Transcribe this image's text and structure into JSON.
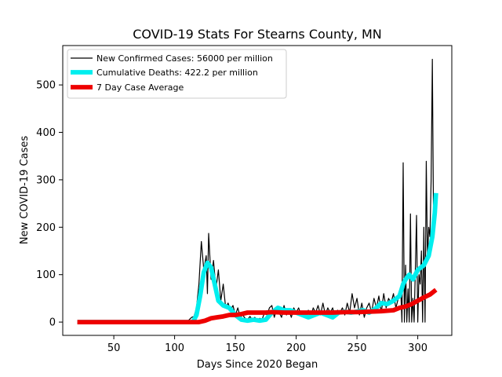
{
  "chart_data": {
    "type": "line",
    "title": "COVID-19 Stats For Stearns County, MN",
    "xlabel": "Days Since 2020 Began",
    "ylabel": "New COVID-19 Cases",
    "xlim": [
      8.0,
      328.0
    ],
    "ylim": [
      -28.0,
      583.0
    ],
    "xticks": [
      50,
      100,
      150,
      200,
      250,
      300
    ],
    "yticks": [
      0,
      100,
      200,
      300,
      400,
      500
    ],
    "grid": false,
    "legend_position": "top-left",
    "series": [
      {
        "name": "New Confirmed Cases: 56000 per million",
        "color": "#000000",
        "x": [
          20,
          40,
          60,
          80,
          100,
          110,
          112,
          114,
          116,
          118,
          120,
          122,
          124,
          126,
          127,
          128,
          130,
          132,
          134,
          136,
          138,
          140,
          142,
          144,
          146,
          148,
          150,
          152,
          154,
          156,
          158,
          160,
          162,
          164,
          166,
          168,
          170,
          172,
          174,
          176,
          178,
          180,
          182,
          184,
          186,
          188,
          190,
          192,
          194,
          196,
          198,
          200,
          202,
          204,
          206,
          208,
          210,
          212,
          214,
          216,
          218,
          220,
          222,
          224,
          226,
          228,
          230,
          232,
          234,
          236,
          238,
          240,
          242,
          244,
          246,
          248,
          250,
          252,
          254,
          256,
          258,
          260,
          262,
          264,
          266,
          268,
          270,
          272,
          274,
          276,
          278,
          280,
          282,
          284,
          286,
          287,
          288,
          289,
          290,
          291,
          292,
          293,
          294,
          295,
          296,
          297,
          298,
          299,
          300,
          301,
          302,
          303,
          304,
          305,
          306,
          307,
          308,
          309,
          310,
          311,
          312,
          313,
          314,
          315
        ],
        "values": [
          0,
          0,
          0,
          0,
          0,
          0,
          5,
          10,
          12,
          30,
          80,
          170,
          110,
          140,
          60,
          187,
          90,
          130,
          70,
          110,
          45,
          80,
          30,
          40,
          25,
          35,
          15,
          30,
          10,
          15,
          8,
          5,
          12,
          4,
          10,
          3,
          8,
          6,
          20,
          15,
          30,
          35,
          10,
          30,
          20,
          10,
          35,
          15,
          25,
          10,
          30,
          20,
          30,
          15,
          20,
          10,
          25,
          10,
          30,
          20,
          35,
          15,
          40,
          15,
          30,
          20,
          30,
          10,
          25,
          20,
          30,
          15,
          40,
          20,
          60,
          30,
          50,
          15,
          40,
          10,
          30,
          40,
          20,
          50,
          30,
          55,
          20,
          60,
          30,
          50,
          40,
          60,
          30,
          50,
          70,
          0,
          336,
          0,
          120,
          0,
          70,
          0,
          228,
          0,
          50,
          0,
          110,
          225,
          0,
          100,
          80,
          150,
          0,
          200,
          0,
          339,
          130,
          200,
          180,
          300,
          554,
          200,
          250,
          270
        ]
      },
      {
        "name": "Cumulative Deaths: 422.2 per million",
        "color": "#00eeee",
        "x": [
          20,
          60,
          100,
          115,
          118,
          121,
          124,
          127,
          130,
          133,
          136,
          140,
          145,
          150,
          155,
          160,
          165,
          170,
          175,
          180,
          185,
          190,
          195,
          200,
          205,
          210,
          215,
          220,
          225,
          230,
          235,
          240,
          245,
          250,
          255,
          260,
          265,
          270,
          275,
          280,
          285,
          288,
          290,
          293,
          296,
          300,
          305,
          309,
          312,
          314,
          315
        ],
        "values": [
          0,
          0,
          0,
          0,
          15,
          55,
          105,
          125,
          115,
          80,
          45,
          35,
          30,
          15,
          5,
          3,
          5,
          3,
          5,
          20,
          30,
          25,
          25,
          20,
          15,
          10,
          15,
          20,
          15,
          10,
          20,
          22,
          20,
          22,
          25,
          20,
          28,
          40,
          38,
          45,
          55,
          80,
          90,
          100,
          90,
          110,
          120,
          140,
          180,
          230,
          272
        ]
      },
      {
        "name": "7 Day Case Average",
        "color": "#ee0000",
        "x": [
          20,
          60,
          100,
          110,
          115,
          120,
          125,
          130,
          135,
          140,
          145,
          150,
          155,
          160,
          165,
          170,
          175,
          180,
          190,
          200,
          210,
          220,
          230,
          240,
          250,
          260,
          270,
          280,
          285,
          290,
          295,
          300,
          305,
          310,
          315
        ],
        "values": [
          0,
          0,
          0,
          0,
          0,
          0,
          3,
          8,
          10,
          12,
          15,
          15,
          17,
          20,
          20,
          20,
          20,
          21,
          20,
          20,
          20,
          20,
          20,
          21,
          21,
          22,
          23,
          25,
          30,
          33,
          38,
          45,
          52,
          58,
          68
        ]
      }
    ]
  }
}
